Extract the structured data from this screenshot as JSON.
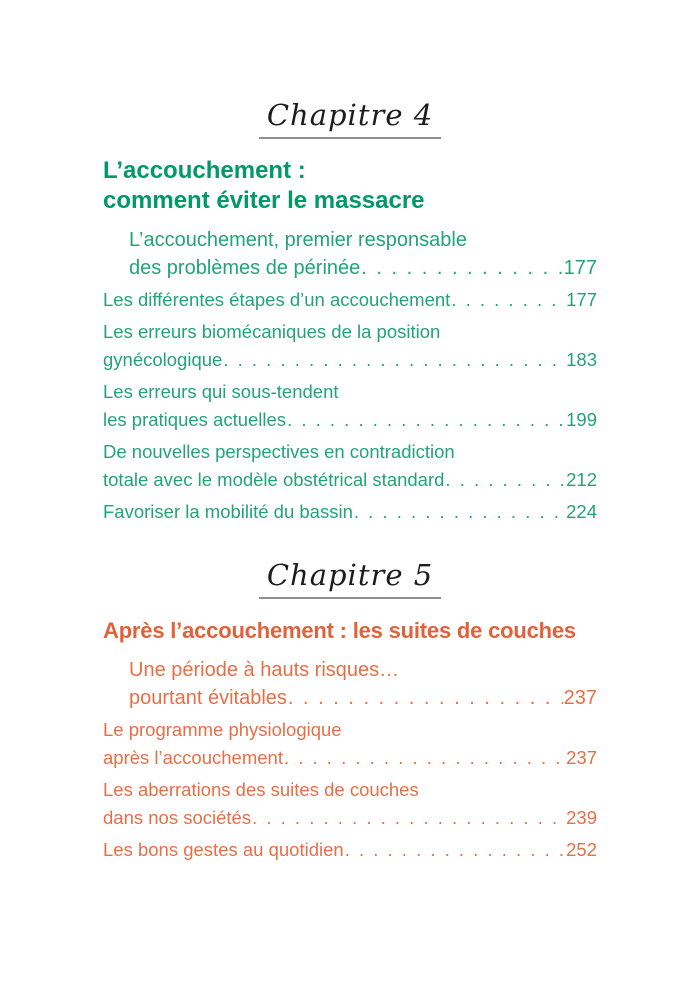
{
  "page": {
    "type": "table-of-contents",
    "language": "fr"
  },
  "colors": {
    "background": "#ffffff",
    "chapter_label_text": "#1c1c1c",
    "chapter_label_underline": "#8e8e8e",
    "chapter4_heading": "#009a66",
    "chapter4_entries": "#23a379",
    "chapter5_heading": "#e2613a",
    "chapter5_entries": "#e76f46"
  },
  "chapters": [
    {
      "label": "Chapitre 4",
      "title_lines": [
        "L’accouchement :",
        "comment éviter le massacre"
      ],
      "entries": [
        {
          "indent": true,
          "lines": [
            "L’accouchement, premier responsable"
          ],
          "tail": "des problèmes de périnée",
          "page": "177"
        },
        {
          "indent": false,
          "lines": [],
          "tail": "Les différentes étapes d’un accouchement",
          "page": "177"
        },
        {
          "indent": false,
          "lines": [
            "Les erreurs biomécaniques de la position"
          ],
          "tail": "gynécologique",
          "page": "183"
        },
        {
          "indent": false,
          "lines": [
            "Les erreurs qui sous-tendent"
          ],
          "tail": "les pratiques actuelles",
          "page": "199"
        },
        {
          "indent": false,
          "lines": [
            "De nouvelles perspectives en contradiction"
          ],
          "tail": "totale avec le modèle obstétrical standard",
          "page": "212"
        },
        {
          "indent": false,
          "lines": [],
          "tail": "Favoriser la mobilité du bassin",
          "page": "224"
        }
      ]
    },
    {
      "label": "Chapitre 5",
      "title_lines": [
        "Après l’accouchement : les suites de couches"
      ],
      "entries": [
        {
          "indent": true,
          "lines": [
            "Une période à hauts risques…"
          ],
          "tail": "pourtant évitables",
          "page": "237"
        },
        {
          "indent": false,
          "lines": [
            "Le programme physiologique"
          ],
          "tail": "après l’accouchement",
          "page": "237"
        },
        {
          "indent": false,
          "lines": [
            "Les aberrations des suites de couches"
          ],
          "tail": "dans nos sociétés",
          "page": "239"
        },
        {
          "indent": false,
          "lines": [],
          "tail": "Les bons gestes au quotidien",
          "page": "252"
        }
      ]
    }
  ]
}
